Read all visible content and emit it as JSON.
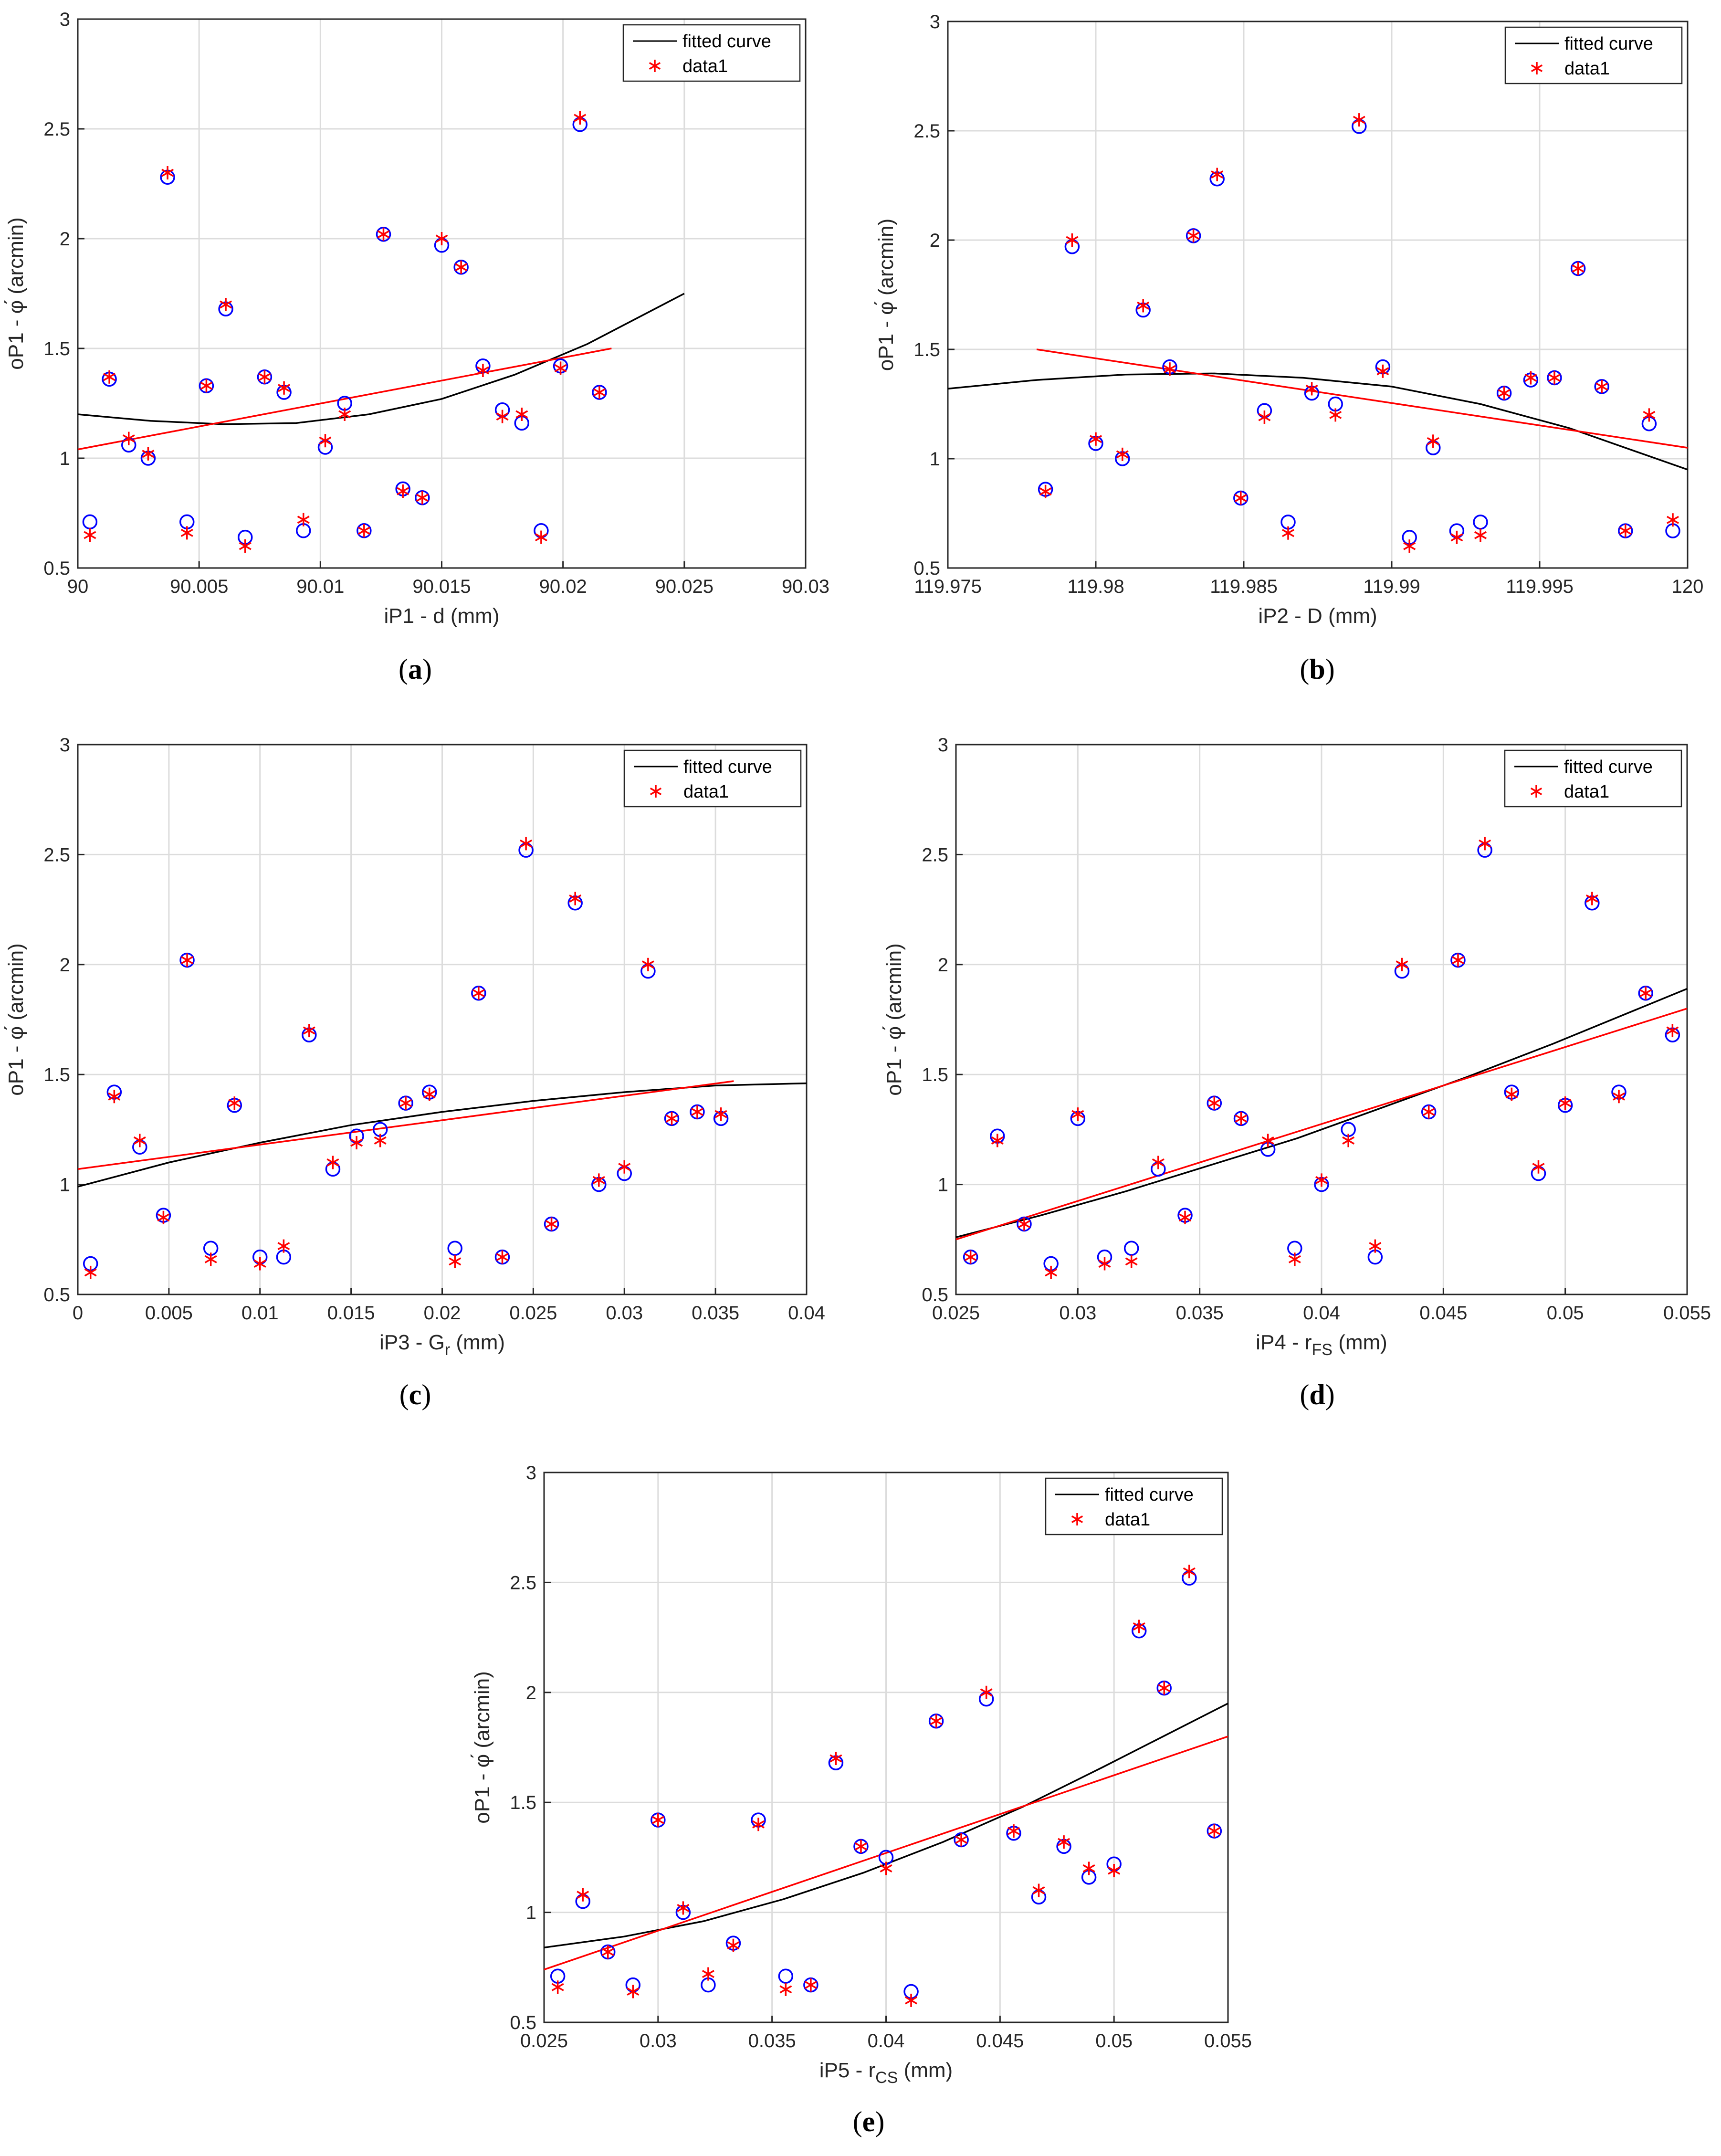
{
  "colors": {
    "fitted": "#000000",
    "linear": "#ff0000",
    "circle": "#0000ff",
    "star": "#ff0000"
  },
  "legend": {
    "fitted": "fitted curve",
    "data": "data1"
  },
  "chart_data": [
    {
      "type": "scatter",
      "caption": "(a)",
      "xlabel": "iP1 - d (mm)",
      "ylabel": "oP1 - φ́ (arcmin)",
      "xlim": [
        90,
        90.03
      ],
      "ylim": [
        0.5,
        3
      ],
      "xticks": [
        "90",
        "90.005",
        "90.01",
        "90.015",
        "90.02",
        "90.025",
        "90.03"
      ],
      "yticks": [
        "0.5",
        "1",
        "1.5",
        "2",
        "2.5",
        "3"
      ],
      "grid": true,
      "legend_position": "top-right",
      "fitted_curve": {
        "x": [
          90,
          90.003,
          90.006,
          90.009,
          90.012,
          90.015,
          90.018,
          90.021,
          90.025
        ],
        "y": [
          1.2,
          1.17,
          1.155,
          1.16,
          1.2,
          1.27,
          1.38,
          1.52,
          1.75
        ]
      },
      "linear_fit": {
        "x": [
          90,
          90.022
        ],
        "y": [
          1.04,
          1.5
        ]
      },
      "circles": {
        "x": [
          90.0005,
          90.0013,
          90.0021,
          90.0029,
          90.0037,
          90.0045,
          90.0053,
          90.0061,
          90.0069,
          90.0077,
          90.0085,
          90.0093,
          90.0102,
          90.011,
          90.0118,
          90.0126,
          90.0134,
          90.0142,
          90.015,
          90.0158,
          90.0167,
          90.0175,
          90.0183,
          90.0191,
          90.0199,
          90.0207,
          90.0215
        ],
        "y": [
          0.71,
          1.36,
          1.06,
          1.0,
          2.28,
          0.71,
          1.33,
          1.68,
          0.64,
          1.37,
          1.3,
          0.67,
          1.05,
          1.25,
          0.67,
          2.02,
          0.86,
          0.82,
          1.97,
          1.87,
          1.42,
          1.22,
          1.16,
          0.67,
          1.42,
          2.52,
          1.3
        ]
      },
      "stars": {
        "x": [
          90.0005,
          90.0013,
          90.0021,
          90.0029,
          90.0037,
          90.0045,
          90.0053,
          90.0061,
          90.0069,
          90.0077,
          90.0085,
          90.0093,
          90.0102,
          90.011,
          90.0118,
          90.0126,
          90.0134,
          90.0142,
          90.015,
          90.0158,
          90.0167,
          90.0175,
          90.0183,
          90.0191,
          90.0199,
          90.0207,
          90.0215
        ],
        "y": [
          0.65,
          1.37,
          1.09,
          1.02,
          2.3,
          0.66,
          1.33,
          1.7,
          0.6,
          1.37,
          1.32,
          0.72,
          1.08,
          1.2,
          0.67,
          2.02,
          0.85,
          0.82,
          2.0,
          1.87,
          1.4,
          1.19,
          1.2,
          0.64,
          1.41,
          2.55,
          1.3
        ]
      }
    },
    {
      "type": "scatter",
      "caption": "(b)",
      "xlabel": "iP2 - D (mm)",
      "ylabel": "oP1 - φ́ (arcmin)",
      "xlim": [
        119.975,
        120
      ],
      "ylim": [
        0.5,
        3
      ],
      "xticks": [
        "119.975",
        "119.98",
        "119.985",
        "119.99",
        "119.995",
        "120"
      ],
      "yticks": [
        "0.5",
        "1",
        "1.5",
        "2",
        "2.5",
        "3"
      ],
      "grid": true,
      "legend_position": "top-right",
      "fitted_curve": {
        "x": [
          119.975,
          119.978,
          119.981,
          119.984,
          119.987,
          119.99,
          119.993,
          119.996,
          120
        ],
        "y": [
          1.32,
          1.36,
          1.385,
          1.39,
          1.37,
          1.33,
          1.25,
          1.14,
          0.95
        ]
      },
      "linear_fit": {
        "x": [
          119.978,
          120
        ],
        "y": [
          1.5,
          1.05
        ]
      },
      "circles": {
        "x": [
          119.9783,
          119.9792,
          119.98,
          119.9809,
          119.9816,
          119.9825,
          119.9833,
          119.9841,
          119.9849,
          119.9857,
          119.9865,
          119.9873,
          119.9881,
          119.9889,
          119.9897,
          119.9906,
          119.9914,
          119.9922,
          119.993,
          119.9938,
          119.9947,
          119.9955,
          119.9963,
          119.9971,
          119.9979,
          119.9987,
          119.9995
        ],
        "y": [
          0.86,
          1.97,
          1.07,
          1.0,
          1.68,
          1.42,
          2.02,
          2.28,
          0.82,
          1.22,
          0.71,
          1.3,
          1.25,
          2.52,
          1.42,
          0.64,
          1.05,
          0.67,
          0.71,
          1.3,
          1.36,
          1.37,
          1.87,
          1.33,
          0.67,
          1.16,
          0.67
        ]
      },
      "stars": {
        "x": [
          119.9783,
          119.9792,
          119.98,
          119.9809,
          119.9816,
          119.9825,
          119.9833,
          119.9841,
          119.9849,
          119.9857,
          119.9865,
          119.9873,
          119.9881,
          119.9889,
          119.9897,
          119.9906,
          119.9914,
          119.9922,
          119.993,
          119.9938,
          119.9947,
          119.9955,
          119.9963,
          119.9971,
          119.9979,
          119.9987,
          119.9995
        ],
        "y": [
          0.85,
          2.0,
          1.09,
          1.02,
          1.7,
          1.41,
          2.02,
          2.3,
          0.82,
          1.19,
          0.66,
          1.32,
          1.2,
          2.55,
          1.4,
          0.6,
          1.08,
          0.64,
          0.65,
          1.3,
          1.37,
          1.37,
          1.87,
          1.33,
          0.67,
          1.2,
          0.72
        ]
      }
    },
    {
      "type": "scatter",
      "caption": "(c)",
      "xlabel": "iP3 - G",
      "xlabel_sub": "r",
      "xlabel_unit": " (mm)",
      "ylabel": "oP1 - φ́ (arcmin)",
      "xlim": [
        0,
        0.04
      ],
      "ylim": [
        0.5,
        3
      ],
      "xticks": [
        "0",
        "0.005",
        "0.01",
        "0.015",
        "0.02",
        "0.025",
        "0.03",
        "0.035",
        "0.04"
      ],
      "yticks": [
        "0.5",
        "1",
        "1.5",
        "2",
        "2.5",
        "3"
      ],
      "grid": true,
      "legend_position": "top-right",
      "fitted_curve": {
        "x": [
          0,
          0.005,
          0.01,
          0.015,
          0.02,
          0.025,
          0.03,
          0.035,
          0.04
        ],
        "y": [
          0.99,
          1.1,
          1.19,
          1.27,
          1.33,
          1.38,
          1.42,
          1.45,
          1.46
        ]
      },
      "linear_fit": {
        "x": [
          0,
          0.036
        ],
        "y": [
          1.07,
          1.47
        ]
      },
      "circles": {
        "x": [
          0.0007,
          0.002,
          0.0034,
          0.0047,
          0.006,
          0.0073,
          0.0086,
          0.01,
          0.0113,
          0.0127,
          0.014,
          0.0153,
          0.0166,
          0.018,
          0.0193,
          0.0207,
          0.022,
          0.0233,
          0.0246,
          0.026,
          0.0273,
          0.0286,
          0.03,
          0.0313,
          0.0326,
          0.034,
          0.0353
        ],
        "y": [
          0.64,
          1.42,
          1.17,
          0.86,
          2.02,
          0.71,
          1.36,
          0.67,
          0.67,
          1.68,
          1.07,
          1.22,
          1.25,
          1.37,
          1.42,
          0.71,
          1.87,
          0.67,
          2.52,
          0.82,
          2.28,
          1.0,
          1.05,
          1.97,
          1.3,
          1.33,
          1.3
        ]
      },
      "stars": {
        "x": [
          0.0007,
          0.002,
          0.0034,
          0.0047,
          0.006,
          0.0073,
          0.0086,
          0.01,
          0.0113,
          0.0127,
          0.014,
          0.0153,
          0.0166,
          0.018,
          0.0193,
          0.0207,
          0.022,
          0.0233,
          0.0246,
          0.026,
          0.0273,
          0.0286,
          0.03,
          0.0313,
          0.0326,
          0.034,
          0.0353
        ],
        "y": [
          0.6,
          1.4,
          1.2,
          0.85,
          2.02,
          0.66,
          1.37,
          0.64,
          0.72,
          1.7,
          1.1,
          1.19,
          1.2,
          1.37,
          1.41,
          0.65,
          1.87,
          0.67,
          2.55,
          0.82,
          2.3,
          1.02,
          1.08,
          2.0,
          1.3,
          1.33,
          1.32
        ]
      }
    },
    {
      "type": "scatter",
      "caption": "(d)",
      "xlabel": "iP4 - r",
      "xlabel_sub": "FS",
      "xlabel_unit": " (mm)",
      "ylabel": "oP1 - φ́ (arcmin)",
      "xlim": [
        0.025,
        0.055
      ],
      "ylim": [
        0.5,
        3
      ],
      "xticks": [
        "0.025",
        "0.03",
        "0.035",
        "0.04",
        "0.045",
        "0.05",
        "0.055"
      ],
      "yticks": [
        "0.5",
        "1",
        "1.5",
        "2",
        "2.5",
        "3"
      ],
      "grid": true,
      "legend_position": "top-right",
      "fitted_curve": {
        "x": [
          0.025,
          0.0285,
          0.032,
          0.0355,
          0.039,
          0.0425,
          0.046,
          0.0495,
          0.055
        ],
        "y": [
          0.76,
          0.86,
          0.97,
          1.09,
          1.21,
          1.35,
          1.49,
          1.64,
          1.89
        ]
      },
      "linear_fit": {
        "x": [
          0.025,
          0.055
        ],
        "y": [
          0.75,
          1.8
        ]
      },
      "circles": {
        "x": [
          0.0256,
          0.0267,
          0.0278,
          0.0289,
          0.03,
          0.0311,
          0.0322,
          0.0333,
          0.0344,
          0.0356,
          0.0367,
          0.0378,
          0.0389,
          0.04,
          0.0411,
          0.0422,
          0.0433,
          0.0444,
          0.0456,
          0.0467,
          0.0478,
          0.0489,
          0.05,
          0.0511,
          0.0522,
          0.0533,
          0.0544
        ],
        "y": [
          0.67,
          1.22,
          0.82,
          0.64,
          1.3,
          0.67,
          0.71,
          1.07,
          0.86,
          1.37,
          1.3,
          1.16,
          0.71,
          1.0,
          1.25,
          0.67,
          1.97,
          1.33,
          2.02,
          2.52,
          1.42,
          1.05,
          1.36,
          2.28,
          1.42,
          1.87,
          1.68
        ]
      },
      "stars": {
        "x": [
          0.0256,
          0.0267,
          0.0278,
          0.0289,
          0.03,
          0.0311,
          0.0322,
          0.0333,
          0.0344,
          0.0356,
          0.0367,
          0.0378,
          0.0389,
          0.04,
          0.0411,
          0.0422,
          0.0433,
          0.0444,
          0.0456,
          0.0467,
          0.0478,
          0.0489,
          0.05,
          0.0511,
          0.0522,
          0.0533,
          0.0544
        ],
        "y": [
          0.67,
          1.2,
          0.82,
          0.6,
          1.32,
          0.64,
          0.65,
          1.1,
          0.85,
          1.37,
          1.3,
          1.2,
          0.66,
          1.02,
          1.2,
          0.72,
          2.0,
          1.33,
          2.02,
          2.55,
          1.41,
          1.08,
          1.37,
          2.3,
          1.4,
          1.87,
          1.7
        ]
      }
    },
    {
      "type": "scatter",
      "caption": "(e)",
      "xlabel": "iP5 - r",
      "xlabel_sub": "CS",
      "xlabel_unit": " (mm)",
      "ylabel": "oP1 - φ́ (arcmin)",
      "xlim": [
        0.025,
        0.055
      ],
      "ylim": [
        0.5,
        3
      ],
      "xticks": [
        "0.025",
        "0.03",
        "0.035",
        "0.04",
        "0.045",
        "0.05",
        "0.055"
      ],
      "yticks": [
        "0.5",
        "1",
        "1.5",
        "2",
        "2.5",
        "3"
      ],
      "grid": true,
      "legend_position": "top-right",
      "fitted_curve": {
        "x": [
          0.025,
          0.0285,
          0.032,
          0.0355,
          0.039,
          0.0425,
          0.046,
          0.0495,
          0.055
        ],
        "y": [
          0.84,
          0.89,
          0.96,
          1.06,
          1.18,
          1.32,
          1.48,
          1.66,
          1.95
        ]
      },
      "linear_fit": {
        "x": [
          0.025,
          0.055
        ],
        "y": [
          0.74,
          1.8
        ]
      },
      "circles": {
        "x": [
          0.0256,
          0.0267,
          0.0278,
          0.0289,
          0.03,
          0.0311,
          0.0322,
          0.0333,
          0.0344,
          0.0356,
          0.0367,
          0.0378,
          0.0389,
          0.04,
          0.0411,
          0.0422,
          0.0433,
          0.0444,
          0.0456,
          0.0467,
          0.0478,
          0.0489,
          0.05,
          0.0511,
          0.0522,
          0.0533,
          0.0544
        ],
        "y": [
          0.71,
          1.05,
          0.82,
          0.67,
          1.42,
          1.0,
          0.67,
          0.86,
          1.42,
          0.71,
          0.67,
          1.68,
          1.3,
          1.25,
          0.64,
          1.87,
          1.33,
          1.97,
          1.36,
          1.07,
          1.3,
          1.16,
          1.22,
          2.28,
          2.02,
          2.52,
          1.37
        ]
      },
      "stars": {
        "x": [
          0.0256,
          0.0267,
          0.0278,
          0.0289,
          0.03,
          0.0311,
          0.0322,
          0.0333,
          0.0344,
          0.0356,
          0.0367,
          0.0378,
          0.0389,
          0.04,
          0.0411,
          0.0422,
          0.0433,
          0.0444,
          0.0456,
          0.0467,
          0.0478,
          0.0489,
          0.05,
          0.0511,
          0.0522,
          0.0533,
          0.0544
        ],
        "y": [
          0.66,
          1.08,
          0.82,
          0.64,
          1.42,
          1.02,
          0.72,
          0.85,
          1.4,
          0.65,
          0.67,
          1.7,
          1.3,
          1.2,
          0.6,
          1.87,
          1.33,
          2.0,
          1.37,
          1.1,
          1.32,
          1.2,
          1.19,
          2.3,
          2.02,
          2.55,
          1.37
        ]
      }
    }
  ]
}
